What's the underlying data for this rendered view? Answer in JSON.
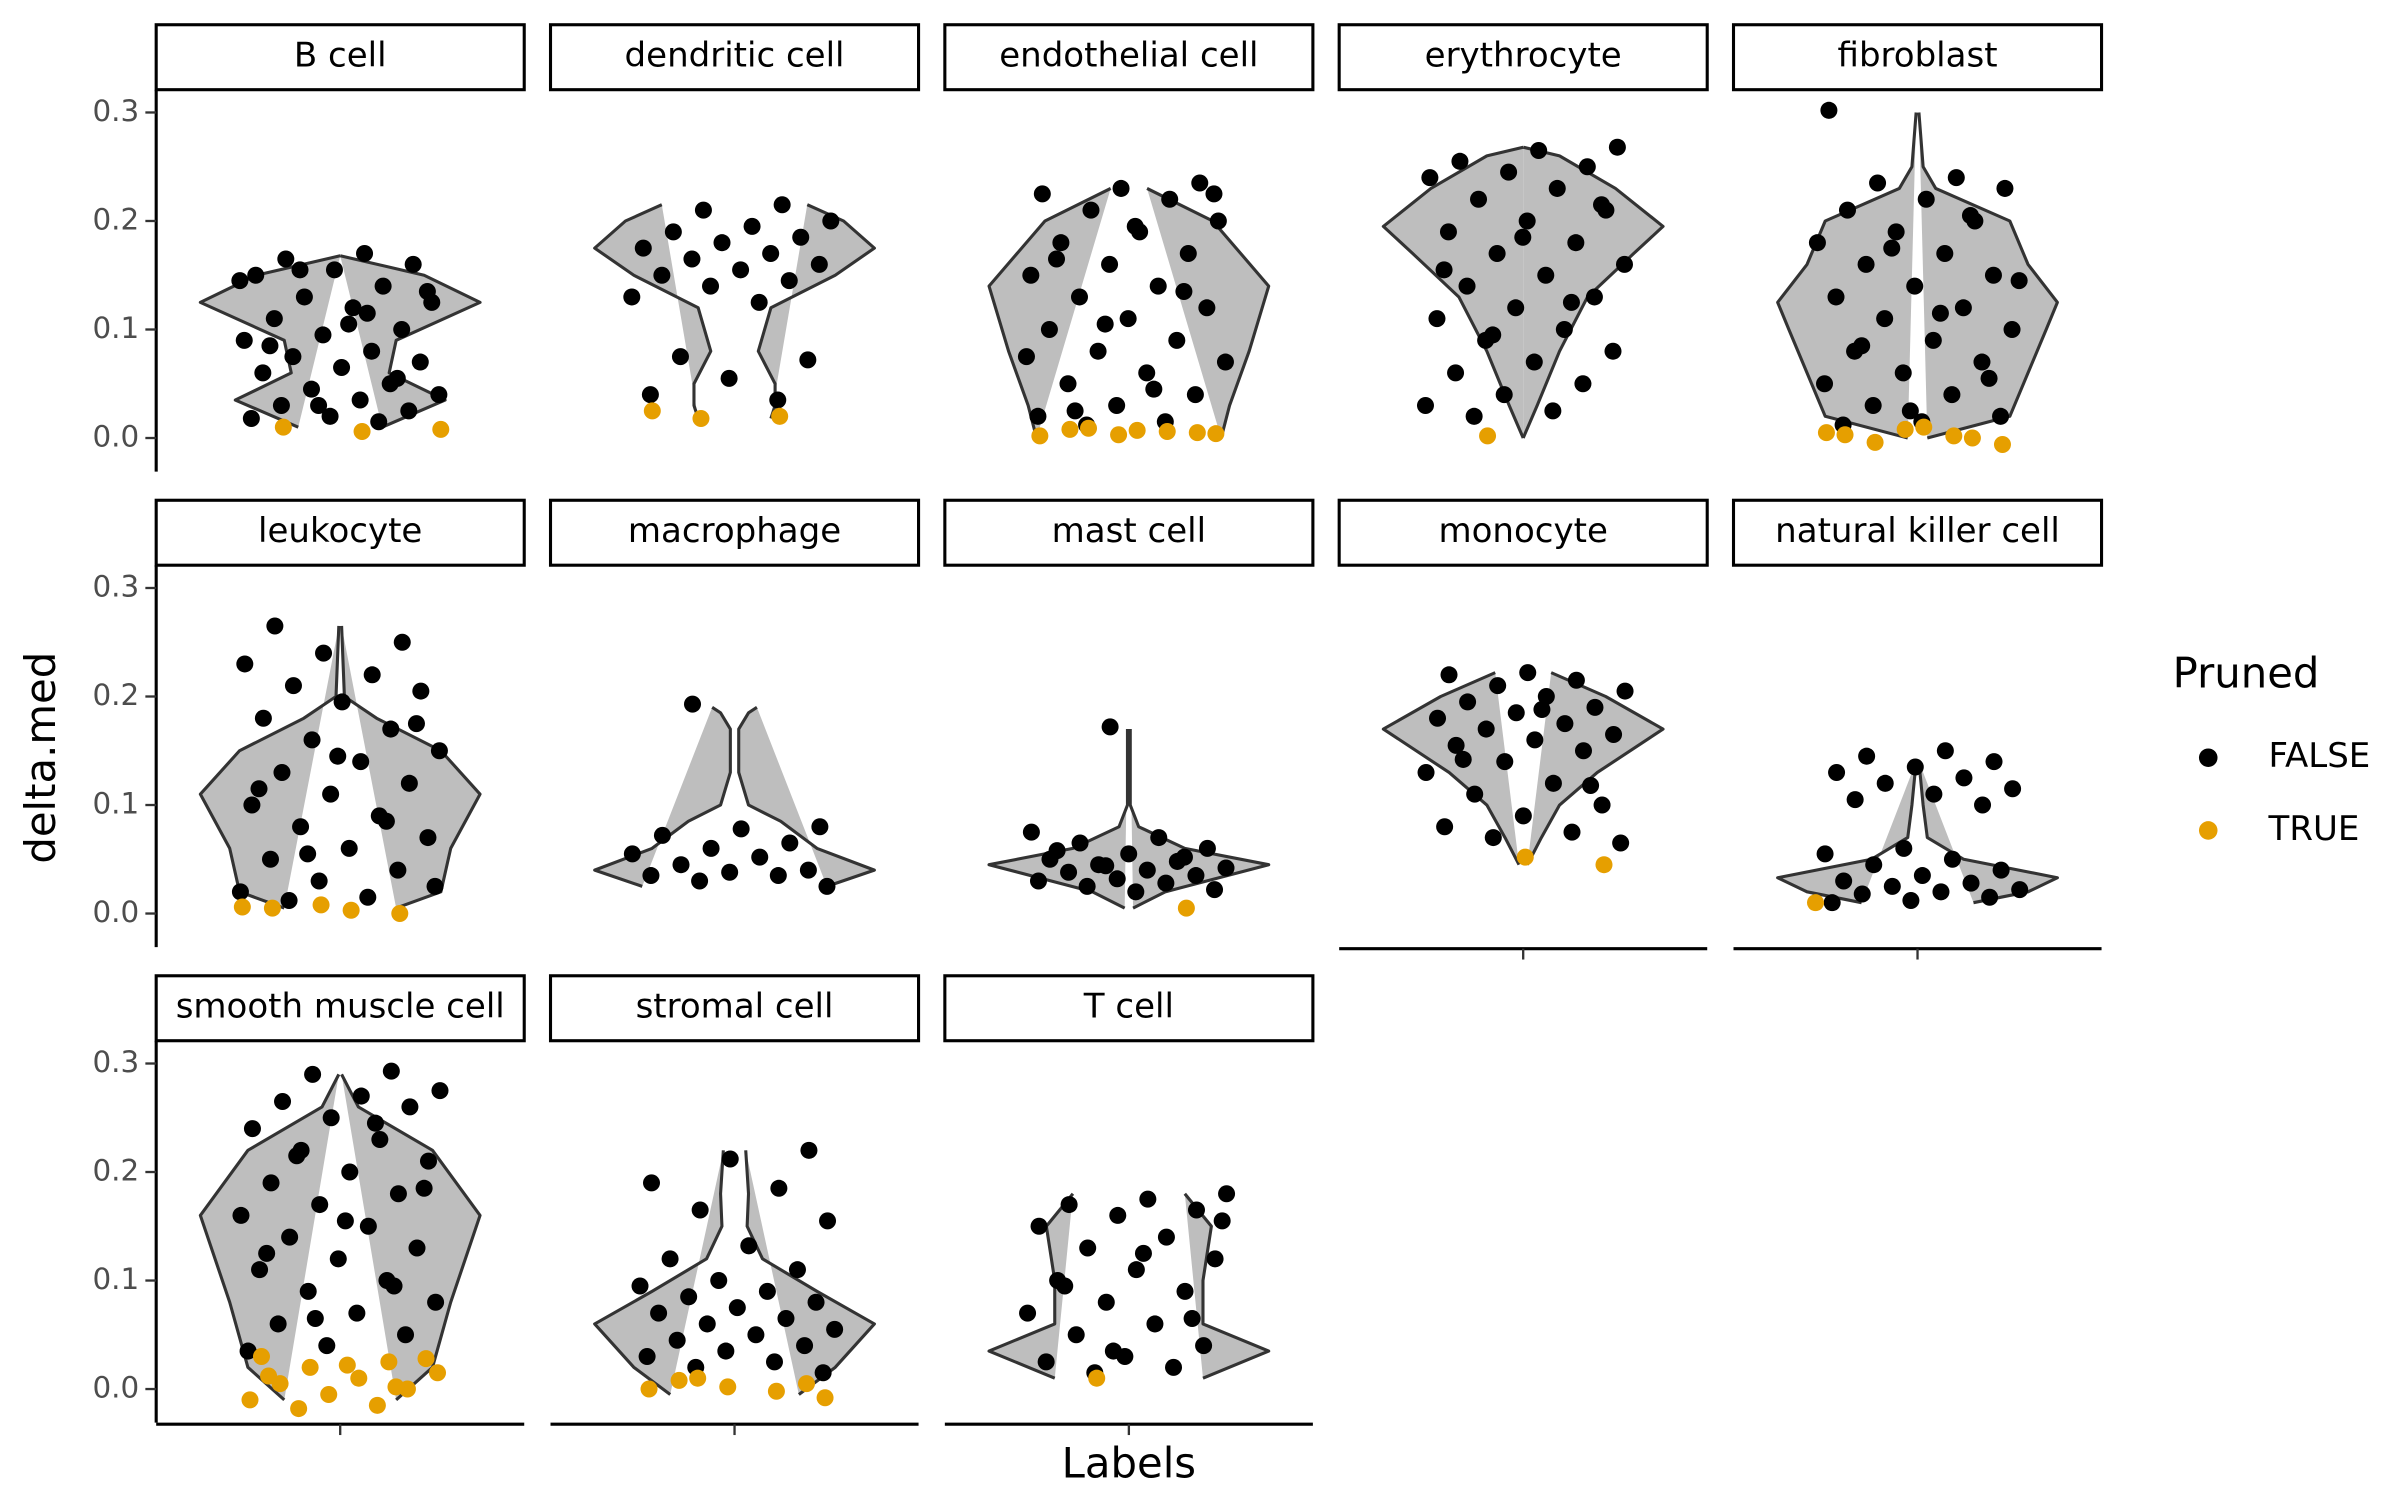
{
  "chart_data": {
    "type": "violin",
    "xlabel": "Labels",
    "ylabel": "delta.med",
    "legend_title": "Pruned",
    "legend_position": "right",
    "violin_color": "#bebebe",
    "series": [
      {
        "name": "FALSE",
        "color": "#000000"
      },
      {
        "name": "TRUE",
        "color": "#E69F00"
      }
    ],
    "ylim": [
      -0.031,
      0.321
    ],
    "yticks": [
      {
        "value": 0,
        "label": "0.0"
      },
      0.1,
      0.2,
      0.3
    ],
    "facets": [
      {
        "label": "B cell",
        "violin": {
          "y": [
            0.01,
            0.035,
            0.06,
            0.09,
            0.125,
            0.15,
            0.168
          ],
          "width": [
            0.3,
            0.75,
            0.35,
            0.4,
            1,
            0.6,
            0
          ]
        },
        "values": [
          [
            0.17,
            0.165,
            0.16,
            0.155,
            0.15,
            0.14,
            0.13,
            0.125,
            0.12,
            0.11,
            0.1,
            0.095,
            0.09,
            0.08,
            0.075,
            0.07,
            0.065,
            0.06,
            0.05,
            0.045,
            0.04,
            0.035,
            0.03,
            0.025,
            0.02,
            0.018,
            0.015,
            0.155,
            0.135,
            0.105,
            0.085,
            0.055,
            0.03,
            0.145,
            0.115
          ],
          [
            0.008,
            0.006,
            0.01
          ]
        ]
      },
      {
        "label": "dendritic cell",
        "violin": {
          "y": [
            0.018,
            0.03,
            0.05,
            0.08,
            0.12,
            0.15,
            0.175,
            0.2,
            0.215
          ],
          "width": [
            0.26,
            0.29,
            0.29,
            0.17,
            0.26,
            0.72,
            1,
            0.78,
            0.52
          ]
        },
        "values": [
          [
            0.215,
            0.21,
            0.2,
            0.195,
            0.19,
            0.185,
            0.18,
            0.175,
            0.17,
            0.165,
            0.16,
            0.155,
            0.15,
            0.145,
            0.14,
            0.13,
            0.125,
            0.075,
            0.072,
            0.055,
            0.04,
            0.035
          ],
          [
            0.025,
            0.02,
            0.018
          ]
        ]
      },
      {
        "label": "endothelial cell",
        "violin": {
          "y": [
            0,
            0.03,
            0.08,
            0.14,
            0.2,
            0.23
          ],
          "width": [
            0.66,
            0.72,
            0.86,
            1,
            0.6,
            0.13
          ]
        },
        "values": [
          [
            0.235,
            0.23,
            0.225,
            0.22,
            0.21,
            0.2,
            0.19,
            0.18,
            0.17,
            0.16,
            0.15,
            0.14,
            0.13,
            0.12,
            0.11,
            0.1,
            0.09,
            0.08,
            0.07,
            0.06,
            0.05,
            0.04,
            0.03,
            0.02,
            0.015,
            0.012,
            0.225,
            0.195,
            0.165,
            0.135,
            0.105,
            0.075,
            0.045,
            0.025
          ],
          [
            0.008,
            0.005,
            0.003,
            0.002,
            0.006,
            0.009,
            0.004,
            0.007
          ]
        ]
      },
      {
        "label": "erythrocyte",
        "violin": {
          "y": [
            0,
            0.03,
            0.08,
            0.13,
            0.17,
            0.195,
            0.23,
            0.26,
            0.268
          ],
          "width": [
            0,
            0.1,
            0.26,
            0.46,
            0.79,
            1,
            0.66,
            0.26,
            0
          ]
        },
        "values": [
          [
            0.268,
            0.265,
            0.255,
            0.25,
            0.245,
            0.24,
            0.23,
            0.22,
            0.21,
            0.2,
            0.19,
            0.18,
            0.17,
            0.16,
            0.15,
            0.14,
            0.13,
            0.12,
            0.11,
            0.1,
            0.09,
            0.08,
            0.07,
            0.06,
            0.05,
            0.04,
            0.03,
            0.025,
            0.02,
            0.215,
            0.185,
            0.155,
            0.125,
            0.095
          ],
          [
            0.002
          ]
        ]
      },
      {
        "label": "fibroblast",
        "violin": {
          "y": [
            0,
            0.02,
            0.06,
            0.1,
            0.125,
            0.16,
            0.2,
            0.23,
            0.25,
            0.3
          ],
          "width": [
            0.07,
            0.66,
            0.79,
            0.92,
            1,
            0.79,
            0.66,
            0.13,
            0.04,
            0.01
          ]
        },
        "values": [
          [
            0.302,
            0.24,
            0.235,
            0.23,
            0.22,
            0.21,
            0.2,
            0.19,
            0.18,
            0.17,
            0.16,
            0.15,
            0.14,
            0.13,
            0.12,
            0.11,
            0.1,
            0.09,
            0.08,
            0.07,
            0.06,
            0.05,
            0.04,
            0.03,
            0.02,
            0.015,
            0.012,
            0.205,
            0.175,
            0.145,
            0.115,
            0.085,
            0.055,
            0.025
          ],
          [
            0.008,
            0.005,
            0.002,
            -0.004,
            -0.006,
            0.01,
            0.003,
            0
          ]
        ]
      },
      {
        "label": "leukocyte",
        "violin": {
          "y": [
            0.005,
            0.02,
            0.06,
            0.11,
            0.15,
            0.18,
            0.2,
            0.265
          ],
          "width": [
            0.4,
            0.72,
            0.79,
            1,
            0.72,
            0.26,
            0.03,
            0.01
          ]
        },
        "values": [
          [
            0.265,
            0.25,
            0.24,
            0.23,
            0.22,
            0.21,
            0.205,
            0.195,
            0.18,
            0.17,
            0.16,
            0.15,
            0.14,
            0.13,
            0.12,
            0.11,
            0.1,
            0.09,
            0.08,
            0.07,
            0.06,
            0.05,
            0.04,
            0.03,
            0.02,
            0.015,
            0.012,
            0.175,
            0.145,
            0.115,
            0.085,
            0.055,
            0.025
          ],
          [
            0.003,
            0.005,
            0,
            0.008,
            0.006
          ]
        ]
      },
      {
        "label": "macrophage",
        "violin": {
          "y": [
            0.025,
            0.04,
            0.06,
            0.085,
            0.1,
            0.13,
            0.17,
            0.185,
            0.19
          ],
          "width": [
            0.66,
            1,
            0.59,
            0.33,
            0.1,
            0.03,
            0.03,
            0.1,
            0.16
          ]
        },
        "values": [
          [
            0.193,
            0.08,
            0.078,
            0.072,
            0.065,
            0.06,
            0.055,
            0.052,
            0.045,
            0.04,
            0.038,
            0.035,
            0.035,
            0.03,
            0.025
          ],
          []
        ]
      },
      {
        "label": "mast cell",
        "violin": {
          "y": [
            0.005,
            0.02,
            0.045,
            0.06,
            0.08,
            0.1,
            0.17
          ],
          "width": [
            0.03,
            0.26,
            1,
            0.4,
            0.07,
            0.01,
            0.01
          ]
        },
        "values": [
          [
            0.172,
            0.075,
            0.07,
            0.065,
            0.06,
            0.055,
            0.05,
            0.048,
            0.045,
            0.042,
            0.04,
            0.038,
            0.035,
            0.032,
            0.03,
            0.028,
            0.025,
            0.022,
            0.02,
            0.058,
            0.052,
            0.044
          ],
          [
            0.005
          ]
        ]
      },
      {
        "label": "monocyte",
        "violin": {
          "y": [
            0.045,
            0.07,
            0.1,
            0.13,
            0.17,
            0.2,
            0.222
          ],
          "width": [
            0.03,
            0.13,
            0.26,
            0.53,
            1,
            0.59,
            0.2
          ]
        },
        "values": [
          [
            0.222,
            0.22,
            0.215,
            0.21,
            0.205,
            0.2,
            0.195,
            0.19,
            0.185,
            0.18,
            0.175,
            0.17,
            0.165,
            0.16,
            0.155,
            0.15,
            0.14,
            0.13,
            0.12,
            0.11,
            0.1,
            0.09,
            0.08,
            0.075,
            0.07,
            0.065,
            0.188,
            0.142,
            0.118
          ],
          [
            0.045,
            0.052
          ]
        ]
      },
      {
        "label": "natural killer cell",
        "violin": {
          "y": [
            0.01,
            0.02,
            0.033,
            0.05,
            0.07,
            0.1,
            0.14
          ],
          "width": [
            0.4,
            0.79,
            1,
            0.33,
            0.07,
            0.04,
            0.01
          ]
        },
        "values": [
          [
            0.15,
            0.145,
            0.14,
            0.135,
            0.13,
            0.125,
            0.12,
            0.115,
            0.11,
            0.105,
            0.1,
            0.06,
            0.055,
            0.05,
            0.045,
            0.04,
            0.035,
            0.03,
            0.028,
            0.025,
            0.022,
            0.02,
            0.018,
            0.015,
            0.012,
            0.01
          ],
          [
            0.01
          ]
        ]
      },
      {
        "label": "smooth muscle cell",
        "violin": {
          "y": [
            -0.01,
            0.02,
            0.08,
            0.16,
            0.22,
            0.26,
            0.29
          ],
          "width": [
            0.4,
            0.66,
            0.79,
            1,
            0.66,
            0.13,
            0.01
          ]
        },
        "values": [
          [
            0.293,
            0.29,
            0.275,
            0.27,
            0.265,
            0.26,
            0.25,
            0.24,
            0.23,
            0.22,
            0.21,
            0.2,
            0.19,
            0.18,
            0.17,
            0.16,
            0.15,
            0.14,
            0.13,
            0.12,
            0.11,
            0.1,
            0.09,
            0.08,
            0.07,
            0.06,
            0.05,
            0.04,
            0.035,
            0.245,
            0.215,
            0.185,
            0.155,
            0.125,
            0.095,
            0.065
          ],
          [
            0.03,
            0.025,
            0.02,
            0.015,
            0.01,
            0.005,
            0,
            -0.005,
            -0.01,
            -0.015,
            -0.018,
            0.028,
            0.022,
            0.012,
            0.002
          ]
        ]
      },
      {
        "label": "stromal cell",
        "violin": {
          "y": [
            -0.005,
            0.02,
            0.06,
            0.09,
            0.12,
            0.15,
            0.18,
            0.22
          ],
          "width": [
            0.46,
            0.72,
            1,
            0.59,
            0.2,
            0.09,
            0.1,
            0.08
          ]
        },
        "values": [
          [
            0.22,
            0.212,
            0.19,
            0.185,
            0.165,
            0.155,
            0.132,
            0.12,
            0.11,
            0.1,
            0.095,
            0.09,
            0.085,
            0.08,
            0.075,
            0.07,
            0.065,
            0.06,
            0.055,
            0.05,
            0.045,
            0.04,
            0.035,
            0.03,
            0.025,
            0.02,
            0.015
          ],
          [
            0.008,
            0.005,
            0.002,
            0,
            -0.002,
            0.01,
            -0.008
          ]
        ]
      },
      {
        "label": "T cell",
        "violin": {
          "y": [
            0.01,
            0.035,
            0.06,
            0.1,
            0.15,
            0.18
          ],
          "width": [
            0.53,
            1,
            0.53,
            0.53,
            0.59,
            0.4
          ]
        },
        "values": [
          [
            0.18,
            0.175,
            0.17,
            0.165,
            0.16,
            0.15,
            0.14,
            0.13,
            0.12,
            0.11,
            0.1,
            0.09,
            0.08,
            0.07,
            0.06,
            0.05,
            0.04,
            0.03,
            0.025,
            0.02,
            0.015,
            0.155,
            0.125,
            0.095,
            0.065,
            0.035
          ],
          [
            0.01
          ]
        ]
      }
    ]
  }
}
